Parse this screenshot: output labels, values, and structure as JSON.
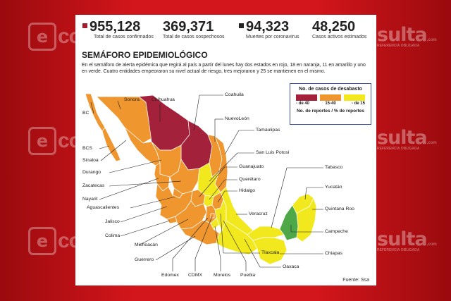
{
  "watermark": {
    "left_text": "co",
    "left_badge": "e",
    "right_text": "sulta",
    "right_tld": ".com",
    "right_tagline": "REFERENCIA OBLIGADA"
  },
  "stats": [
    {
      "value": "955,128",
      "label": "Total de casos confirmados",
      "marker": true
    },
    {
      "value": "369,371",
      "label": "Total de casos sospechosos",
      "marker": false
    },
    {
      "value": "94,323",
      "label": "Muertes por coronavirus",
      "marker": true
    },
    {
      "value": "48,250",
      "label": "Casos activos estimados",
      "marker": false
    }
  ],
  "title": "SEMÁFORO EPIDEMIOLÓGICO",
  "description": "En el semáforo de alerta epidémica que regirá al país a partir del lunes hay dos estados en rojo, 18 en naranja, 11 en amarillo y uno en verde. Cuatro entidades empeoraron su nivel actual de riesgo, tres mejoraron y 25 se mantienen en el mismo.",
  "legend": {
    "title": "No. de casos de desabasto",
    "items": [
      {
        "label": "- de 40",
        "color": "#a3213a"
      },
      {
        "label": "15-40",
        "color": "#f0962f"
      },
      {
        "label": "- de 15",
        "color": "#f2e81e"
      }
    ],
    "footer": "No. de reportes / % de reportes"
  },
  "colors": {
    "red": "#a3213a",
    "orange": "#f0962f",
    "yellow": "#f2e81e",
    "green": "#4fa848",
    "accent": "#d3161b"
  },
  "states": [
    {
      "id": "sonora",
      "name": "Sonora"
    },
    {
      "id": "chihuahua",
      "name": "Chihuahua"
    },
    {
      "id": "coahuila",
      "name": "Coahuila"
    },
    {
      "id": "bc",
      "name": "BC"
    },
    {
      "id": "nuevoleon",
      "name": "NuevoLeón"
    },
    {
      "id": "tamaulipas",
      "name": "Tamaulipas"
    },
    {
      "id": "bcs",
      "name": "BCS"
    },
    {
      "id": "sanluis",
      "name": "San Luis Potosí"
    },
    {
      "id": "sinaloa",
      "name": "Sinaloa"
    },
    {
      "id": "guanajuato",
      "name": "Guanajuato"
    },
    {
      "id": "durango",
      "name": "Durango"
    },
    {
      "id": "queretaro",
      "name": "Querétaro"
    },
    {
      "id": "tabasco",
      "name": "Tabasco"
    },
    {
      "id": "zacatecas",
      "name": "Zacatecas"
    },
    {
      "id": "hidalgo",
      "name": "Hidalgo"
    },
    {
      "id": "yucatan",
      "name": "Yucatán"
    },
    {
      "id": "nayarit",
      "name": "Nayarit"
    },
    {
      "id": "veracruz",
      "name": "Veracruz"
    },
    {
      "id": "quintanaroo",
      "name": "Quintana Roo"
    },
    {
      "id": "aguascalientes",
      "name": "Aguascalientes"
    },
    {
      "id": "jalisco",
      "name": "Jalisco"
    },
    {
      "id": "campeche",
      "name": "Campeche"
    },
    {
      "id": "colima",
      "name": "Colima"
    },
    {
      "id": "chiapas",
      "name": "Chiapas"
    },
    {
      "id": "michoacan",
      "name": "Michoacán"
    },
    {
      "id": "tlaxcala",
      "name": "Tlaxcala"
    },
    {
      "id": "oaxaca",
      "name": "Oaxaca"
    },
    {
      "id": "guerrero",
      "name": "Guerrero"
    },
    {
      "id": "edomex",
      "name": "Edomex"
    },
    {
      "id": "cdmx",
      "name": "CDMX"
    },
    {
      "id": "morelos",
      "name": "Morelos"
    },
    {
      "id": "puebla",
      "name": "Puebla"
    }
  ],
  "source": "Fuente: Ssa"
}
